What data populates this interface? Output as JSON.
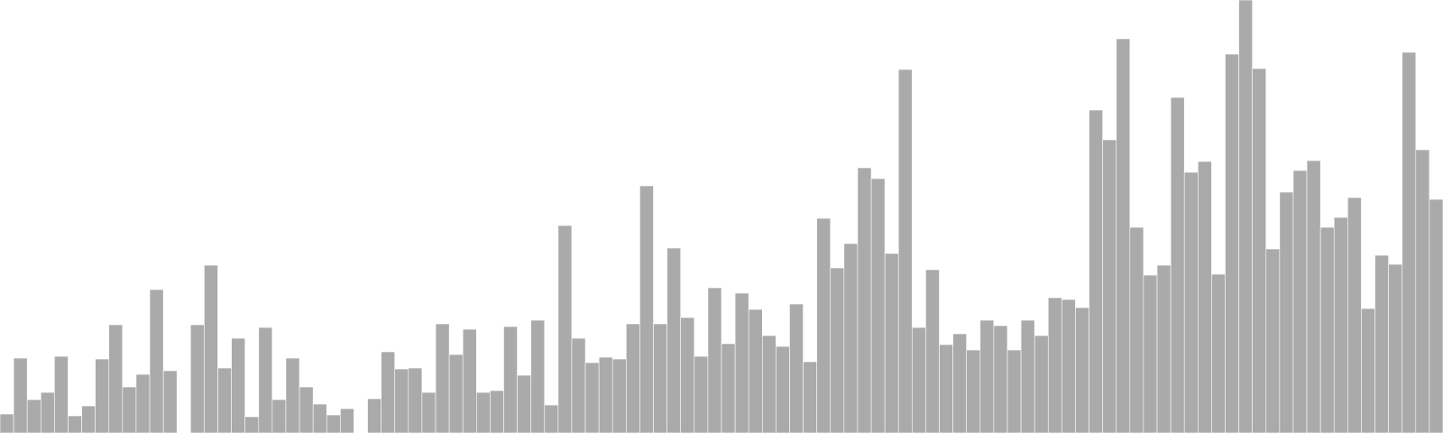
{
  "chart_data": {
    "type": "bar",
    "title": "",
    "xlabel": "",
    "ylabel": "",
    "ylim": [
      0,
      480
    ],
    "grid": false,
    "legend": "none",
    "bar_color": "#aaaaaa",
    "bar_edge_color": "#ffffff",
    "series": [
      {
        "values": [
          21,
          83,
          37,
          45,
          85,
          19,
          30,
          82,
          120,
          51,
          65,
          159,
          69,
          0,
          120,
          186,
          72,
          105,
          18,
          117,
          37,
          83,
          51,
          32,
          20,
          27,
          0,
          38,
          90,
          71,
          72,
          45,
          121,
          87,
          115,
          45,
          47,
          118,
          64,
          125,
          31,
          230,
          105,
          78,
          84,
          82,
          121,
          274,
          121,
          205,
          128,
          85,
          161,
          99,
          155,
          137,
          108,
          96,
          143,
          79,
          238,
          183,
          210,
          294,
          282,
          199,
          403,
          117,
          181,
          98,
          110,
          92,
          125,
          119,
          92,
          125,
          108,
          150,
          148,
          139,
          358,
          325,
          437,
          228,
          175,
          186,
          372,
          289,
          301,
          176,
          420,
          480,
          404,
          204,
          267,
          291,
          302,
          228,
          239,
          261,
          138,
          197,
          187,
          422,
          314,
          259
        ]
      }
    ]
  }
}
